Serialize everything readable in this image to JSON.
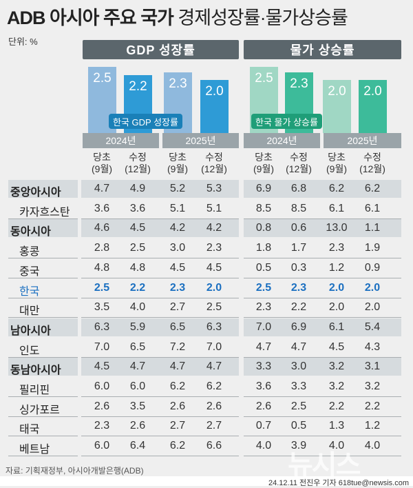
{
  "title_bold": "ADB 아시아 주요 국가",
  "title_rest": "경제성장률·물가상승률",
  "unit": "단위: %",
  "gdp_header": "GDP 성장률",
  "cpi_header": "물가 상승률",
  "gdp_korea_label": "한국 GDP 성장률",
  "cpi_korea_label": "한국 물가 상승률",
  "years": [
    "2024년",
    "2025년"
  ],
  "sub_columns": [
    {
      "l1": "당초",
      "l2": "(9월)"
    },
    {
      "l1": "수정",
      "l2": "(12월)"
    }
  ],
  "colors": {
    "header": "#5b666c",
    "gdp_initial": "#8fb9dd",
    "gdp_revised": "#2e9bd6",
    "cpi_initial": "#a0d7c4",
    "cpi_revised": "#3dbb9a",
    "korea_text": "#1a6fc0",
    "region_row": "#d6dbde"
  },
  "chart_data": [
    {
      "type": "bar",
      "title": "한국 GDP 성장률",
      "categories": [
        "2024년 당초(9월)",
        "2024년 수정(12월)",
        "2025년 당초(9월)",
        "2025년 수정(12월)"
      ],
      "values": [
        2.5,
        2.2,
        2.3,
        2.0
      ]
    },
    {
      "type": "bar",
      "title": "한국 물가 상승률",
      "categories": [
        "2024년 당초(9월)",
        "2024년 수정(12월)",
        "2025년 당초(9월)",
        "2025년 수정(12월)"
      ],
      "values": [
        2.5,
        2.3,
        2.0,
        2.0
      ]
    },
    {
      "type": "table",
      "columns": [
        "GDP 2024 당초",
        "GDP 2024 수정",
        "GDP 2025 당초",
        "GDP 2025 수정",
        "물가 2024 당초",
        "물가 2024 수정",
        "물가 2025 당초",
        "물가 2025 수정"
      ],
      "rows": [
        {
          "name": "중앙아시아",
          "kind": "region",
          "values": [
            "4.7",
            "4.9",
            "5.2",
            "5.3",
            "6.9",
            "6.8",
            "6.2",
            "6.2"
          ]
        },
        {
          "name": "카자흐스탄",
          "kind": "country",
          "values": [
            "3.6",
            "3.6",
            "5.1",
            "5.1",
            "8.5",
            "8.5",
            "6.1",
            "6.1"
          ]
        },
        {
          "name": "동아시아",
          "kind": "region",
          "values": [
            "4.6",
            "4.5",
            "4.2",
            "4.2",
            "0.8",
            "0.6",
            "13.0",
            "1.1"
          ]
        },
        {
          "name": "홍콩",
          "kind": "country",
          "values": [
            "2.8",
            "2.5",
            "3.0",
            "2.3",
            "1.8",
            "1.7",
            "2.3",
            "1.9"
          ]
        },
        {
          "name": "중국",
          "kind": "country",
          "values": [
            "4.8",
            "4.8",
            "4.5",
            "4.5",
            "0.5",
            "0.3",
            "1.2",
            "0.9"
          ]
        },
        {
          "name": "한국",
          "kind": "korea",
          "values": [
            "2.5",
            "2.2",
            "2.3",
            "2.0",
            "2.5",
            "2.3",
            "2.0",
            "2.0"
          ]
        },
        {
          "name": "대만",
          "kind": "country",
          "values": [
            "3.5",
            "4.0",
            "2.7",
            "2.5",
            "2.3",
            "2.2",
            "2.0",
            "2.0"
          ]
        },
        {
          "name": "남아시아",
          "kind": "region",
          "values": [
            "6.3",
            "5.9",
            "6.5",
            "6.3",
            "7.0",
            "6.9",
            "6.1",
            "5.4"
          ]
        },
        {
          "name": "인도",
          "kind": "country",
          "values": [
            "7.0",
            "6.5",
            "7.2",
            "7.0",
            "4.7",
            "4.7",
            "4.5",
            "4.3"
          ]
        },
        {
          "name": "동남아시아",
          "kind": "region",
          "values": [
            "4.5",
            "4.7",
            "4.7",
            "4.7",
            "3.3",
            "3.0",
            "3.2",
            "3.1"
          ]
        },
        {
          "name": "필리핀",
          "kind": "country",
          "values": [
            "6.0",
            "6.0",
            "6.2",
            "6.2",
            "3.6",
            "3.3",
            "3.2",
            "3.2"
          ]
        },
        {
          "name": "싱가포르",
          "kind": "country",
          "values": [
            "2.6",
            "3.5",
            "2.6",
            "2.6",
            "2.6",
            "2.5",
            "2.2",
            "2.2"
          ]
        },
        {
          "name": "태국",
          "kind": "country",
          "values": [
            "2.3",
            "2.6",
            "2.7",
            "2.7",
            "0.7",
            "0.5",
            "1.3",
            "1.2"
          ]
        },
        {
          "name": "베트남",
          "kind": "country",
          "values": [
            "6.0",
            "6.4",
            "6.2",
            "6.6",
            "4.0",
            "3.9",
            "4.0",
            "4.0"
          ]
        }
      ]
    }
  ],
  "source": "자료: 기획재정부, 아시아개발은행(ADB)",
  "credit": "24.12.11 전진우 기자 618tue@newsis.com",
  "watermark": "뉴시스"
}
